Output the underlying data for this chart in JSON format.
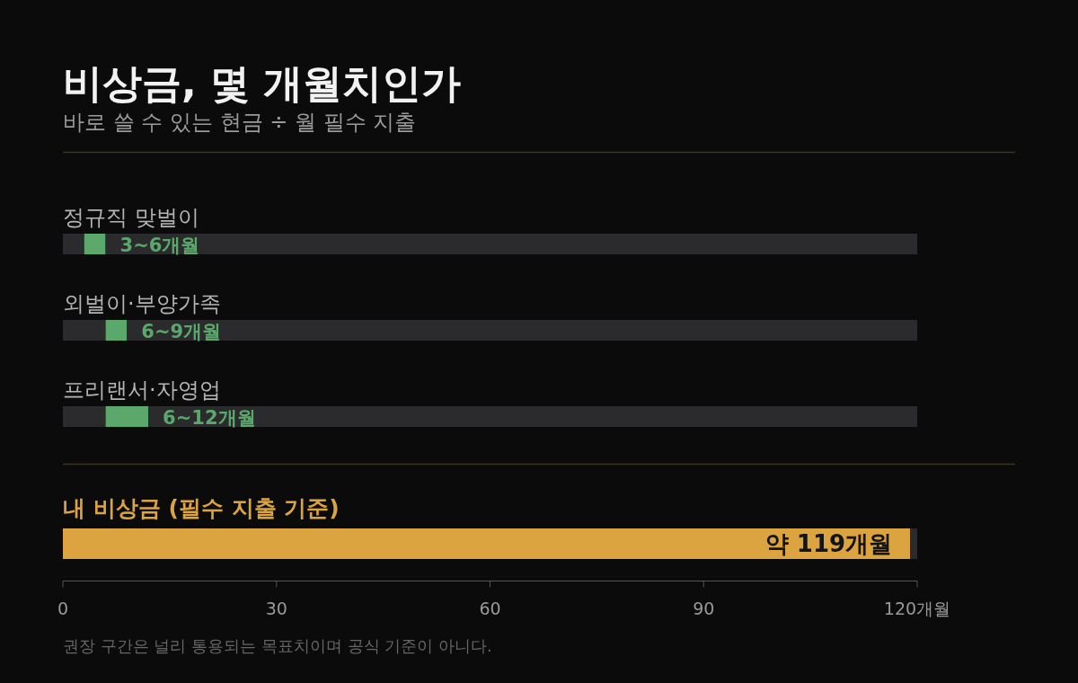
{
  "chart_data": [
    {
      "type": "bar",
      "orientation": "horizontal",
      "stacked": true,
      "title": "비상금, 몇 개월치인가",
      "subtitle": "바로 쓸 수 있는 현금 ÷ 월 필수 지출",
      "categories": [
        "정규직 맞벌이",
        "외벌이·부양가족",
        "프리랜서·자영업"
      ],
      "series": [
        {
          "color": "#2b2b2d",
          "values": [
            3,
            6,
            6
          ]
        },
        {
          "color": "#5ba86c",
          "values": [
            3,
            3,
            6
          ]
        },
        {
          "color": "#2b2b2d",
          "values": [
            114,
            111,
            108
          ]
        }
      ],
      "xlim": [
        0,
        120
      ],
      "annotations": [
        "3~6개월",
        "6~9개월",
        "6~12개월"
      ]
    },
    {
      "type": "bar",
      "orientation": "horizontal",
      "stacked": true,
      "categories": [
        "내 비상금 (필수 지출 기준)"
      ],
      "series": [
        {
          "color": "#dca341",
          "values": [
            119
          ],
          "value_labels": [
            "약 119개월"
          ]
        },
        {
          "color": "#2b2b2d",
          "values": [
            1
          ]
        }
      ],
      "xlim": [
        0,
        120
      ],
      "xticks": [
        0,
        30,
        60,
        90,
        {
          "value": 120,
          "label": "120개월"
        }
      ],
      "annotations": [
        "권장 구간은 널리 통용되는 목표치이며 공식 기준이 아니다."
      ]
    }
  ]
}
